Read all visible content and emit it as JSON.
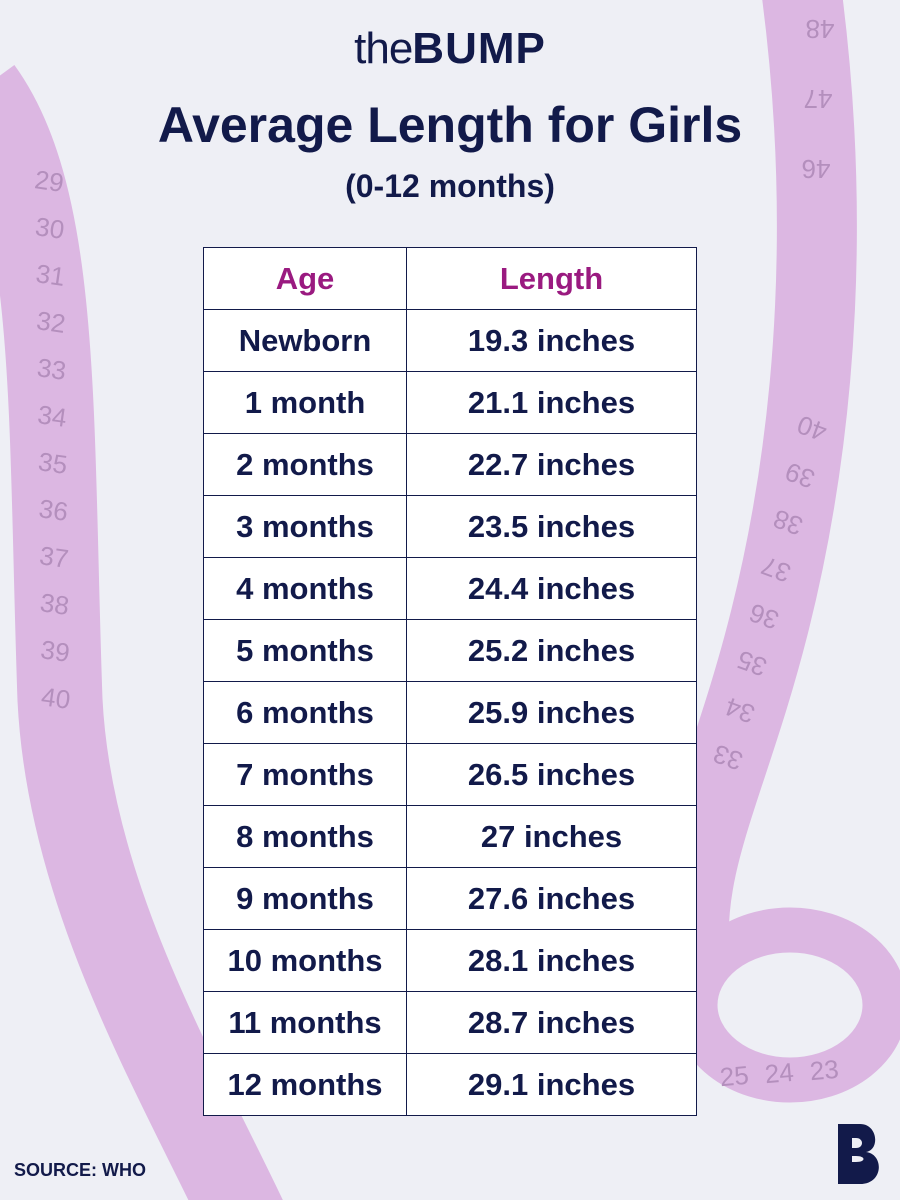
{
  "header": {
    "logo": {
      "prefix": "the",
      "name": "BUMP"
    },
    "title": "Average Length for Girls",
    "subtitle": "(0-12 months)"
  },
  "table": {
    "columns": [
      "Age",
      "Length"
    ],
    "rows": [
      [
        "Newborn",
        "19.3 inches"
      ],
      [
        "1 month",
        "21.1 inches"
      ],
      [
        "2 months",
        "22.7 inches"
      ],
      [
        "3 months",
        "23.5 inches"
      ],
      [
        "4 months",
        "24.4 inches"
      ],
      [
        "5 months",
        "25.2 inches"
      ],
      [
        "6 months",
        "25.9 inches"
      ],
      [
        "7 months",
        "26.5 inches"
      ],
      [
        "8 months",
        "27 inches"
      ],
      [
        "9 months",
        "27.6 inches"
      ],
      [
        "10 months",
        "28.1 inches"
      ],
      [
        "11 months",
        "28.7 inches"
      ],
      [
        "12 months",
        "29.1 inches"
      ]
    ]
  },
  "tape_marks": {
    "left": [
      "29",
      "30",
      "31",
      "32",
      "33",
      "34",
      "35",
      "36",
      "37",
      "38",
      "39",
      "40"
    ],
    "right": [
      "48",
      "47",
      "46",
      "40",
      "39",
      "38",
      "37",
      "36",
      "35",
      "34",
      "33"
    ],
    "coil": [
      "25",
      "24",
      "23"
    ]
  },
  "footer": {
    "source": "SOURCE: WHO"
  }
}
